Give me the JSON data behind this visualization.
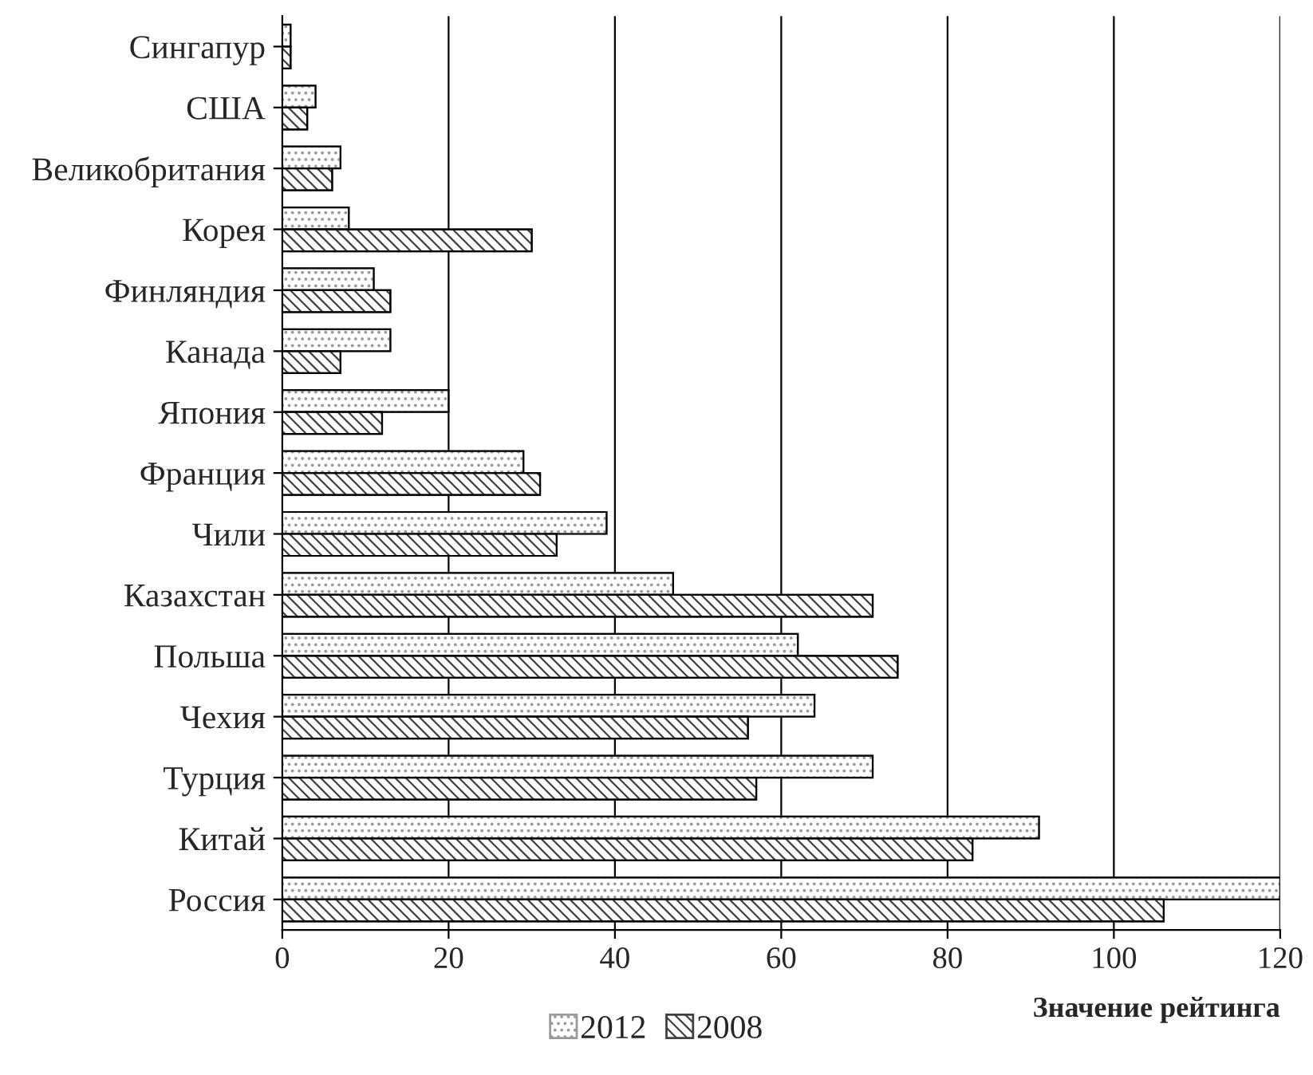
{
  "chart_data": {
    "type": "bar",
    "orientation": "horizontal",
    "xlabel": "Значение рейтинга",
    "categories": [
      "Сингапур",
      "США",
      "Великобритания",
      "Корея",
      "Финляндия",
      "Канада",
      "Япония",
      "Франция",
      "Чили",
      "Казахстан",
      "Польша",
      "Чехия",
      "Турция",
      "Китай",
      "Россия"
    ],
    "series": [
      {
        "name": "2012",
        "color": "#9a9a9a",
        "values": [
          1,
          4,
          7,
          8,
          11,
          13,
          20,
          29,
          39,
          47,
          62,
          64,
          71,
          91,
          120
        ]
      },
      {
        "name": "2008",
        "color": "#404040",
        "values": [
          1,
          3,
          6,
          30,
          13,
          7,
          12,
          31,
          33,
          71,
          74,
          56,
          57,
          83,
          106
        ]
      }
    ],
    "xlim": [
      0,
      120
    ],
    "xticks": [
      0,
      20,
      40,
      60,
      80,
      100,
      120
    ],
    "grid": "x",
    "legend": "bottom"
  }
}
